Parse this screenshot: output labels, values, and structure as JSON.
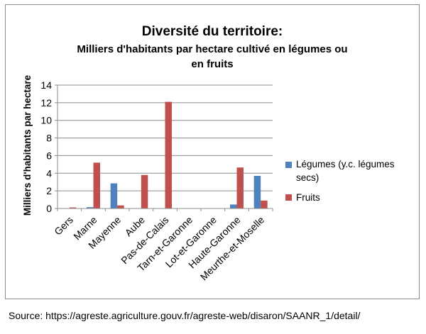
{
  "chart_data": {
    "type": "bar",
    "title": "Diversité du territoire:",
    "subtitle_lines": [
      "Milliers d'habitants par hectare cultivé en légumes ou",
      "en fruits"
    ],
    "ylabel": "Milliers d'habitants par hectare",
    "xlabel": "",
    "ylim": [
      0,
      14
    ],
    "yticks": [
      "0",
      "2",
      "4",
      "6",
      "8",
      "10",
      "12",
      "14"
    ],
    "grid": true,
    "legend_position": "right",
    "categories": [
      "Gers",
      "Marne",
      "Mayenne",
      "Aube",
      "Pas-de-Calais",
      "Tarn-et-Garonne",
      "Lot-et-Garonne",
      "Haute-Garonne",
      "Meurthe-et-Moselle"
    ],
    "series": [
      {
        "name_lines": [
          "Légumes (y.c. légumes",
          "secs)"
        ],
        "color": "#4f81bd",
        "values": [
          0,
          0.15,
          2.85,
          0,
          0,
          0,
          0,
          0.45,
          3.7
        ]
      },
      {
        "name_lines": [
          "Fruits"
        ],
        "color": "#c0504d",
        "values": [
          0.12,
          5.2,
          0.35,
          3.8,
          12.1,
          0,
          0,
          4.65,
          0.9
        ]
      }
    ]
  },
  "source_text": "Source: https://agreste.agriculture.gouv.fr/agreste-web/disaron/SAANR_1/detail/"
}
